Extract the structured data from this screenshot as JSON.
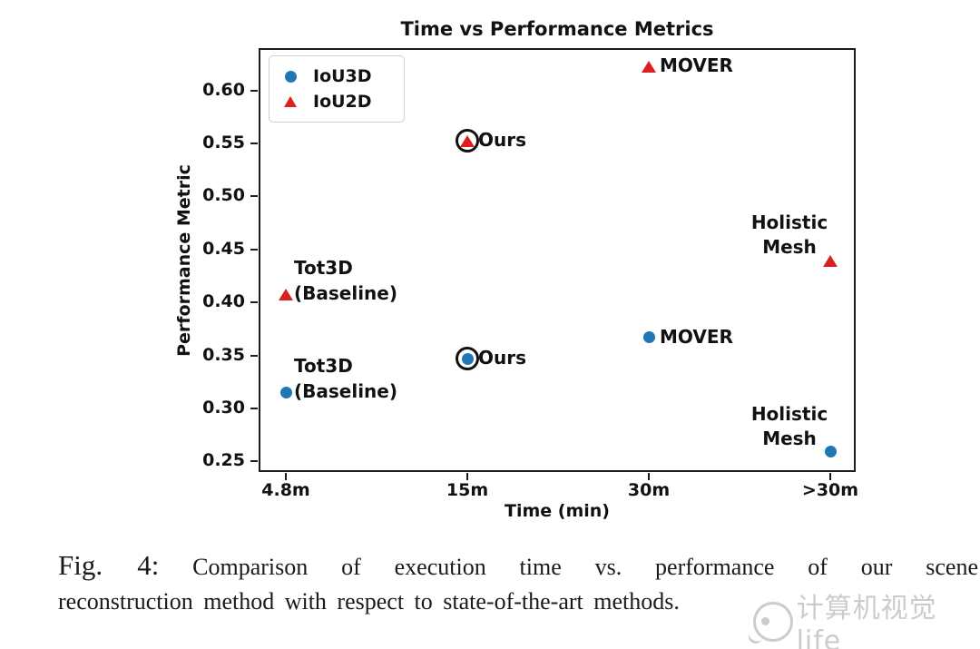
{
  "figure": {
    "caption_prefix": "Fig. 4:",
    "caption_line1": "Comparison of execution time vs. performance of our scene",
    "caption_line2": "reconstruction method with respect to state-of-the-art methods.",
    "watermark": "计算机视觉life"
  },
  "chart_data": {
    "type": "scatter",
    "title": "Time vs Performance Metrics",
    "xlabel": "Time (min)",
    "ylabel": "Performance Metric",
    "categories": [
      "4.8m",
      "15m",
      "30m",
      ">30m"
    ],
    "x_index_lim": [
      -0.15,
      3.14
    ],
    "ylim": [
      0.24,
      0.64
    ],
    "yticks": [
      0.6,
      0.55,
      0.5,
      0.45,
      0.4,
      0.35,
      0.3,
      0.25
    ],
    "grid": false,
    "colors": {
      "IoU3D": "#1f77b4",
      "IoU2D": "#dc2020"
    },
    "legend": {
      "position": "upper left",
      "entries": [
        {
          "name": "IoU3D",
          "marker": "circle",
          "color": "#1f77b4"
        },
        {
          "name": "IoU2D",
          "marker": "triangle",
          "color": "#dc2020"
        }
      ]
    },
    "points": [
      {
        "series": "IoU2D",
        "category": "30m",
        "cat_index": 2,
        "value": 0.623,
        "label": "MOVER",
        "ring": false,
        "label_placement": "right"
      },
      {
        "series": "IoU2D",
        "category": "15m",
        "cat_index": 1,
        "value": 0.553,
        "label": "Ours",
        "ring": true,
        "label_placement": "right"
      },
      {
        "series": "IoU2D",
        "category": ">30m",
        "cat_index": 3,
        "value": 0.44,
        "label": "Holistic\nMesh",
        "ring": false,
        "label_placement": "above-left"
      },
      {
        "series": "IoU2D",
        "category": "4.8m",
        "cat_index": 0,
        "value": 0.408,
        "label": "Tot3D\n(Baseline)",
        "ring": false,
        "label_placement": "right-above"
      },
      {
        "series": "IoU3D",
        "category": "30m",
        "cat_index": 2,
        "value": 0.367,
        "label": "MOVER",
        "ring": false,
        "label_placement": "right"
      },
      {
        "series": "IoU3D",
        "category": "15m",
        "cat_index": 1,
        "value": 0.347,
        "label": "Ours",
        "ring": true,
        "label_placement": "right"
      },
      {
        "series": "IoU3D",
        "category": "4.8m",
        "cat_index": 0,
        "value": 0.315,
        "label": "Tot3D\n(Baseline)",
        "ring": false,
        "label_placement": "right-above"
      },
      {
        "series": "IoU3D",
        "category": ">30m",
        "cat_index": 3,
        "value": 0.259,
        "label": "Holistic\nMesh",
        "ring": false,
        "label_placement": "above-left"
      }
    ]
  }
}
